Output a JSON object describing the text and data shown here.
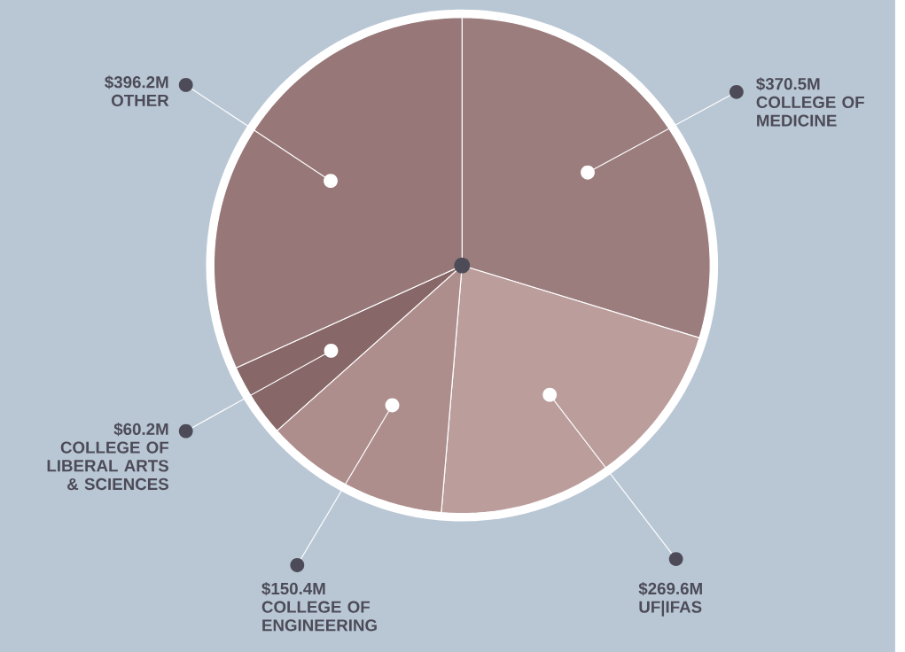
{
  "chart_data": {
    "type": "pie",
    "categories": [
      "COLLEGE OF MEDICINE",
      "UF|IFAS",
      "COLLEGE OF ENGINEERING",
      "COLLEGE OF LIBERAL ARTS & SCIENCES",
      "OTHER"
    ],
    "values": [
      370.5,
      269.6,
      150.4,
      60.2,
      396.2
    ],
    "value_labels": [
      "$370.5M",
      "$269.6M",
      "$150.4M",
      "$60.2M",
      "$396.2M"
    ],
    "colors": [
      "#9c7d7d",
      "#bb9d9c",
      "#ad8e8d",
      "#876767",
      "#977777"
    ]
  }
}
